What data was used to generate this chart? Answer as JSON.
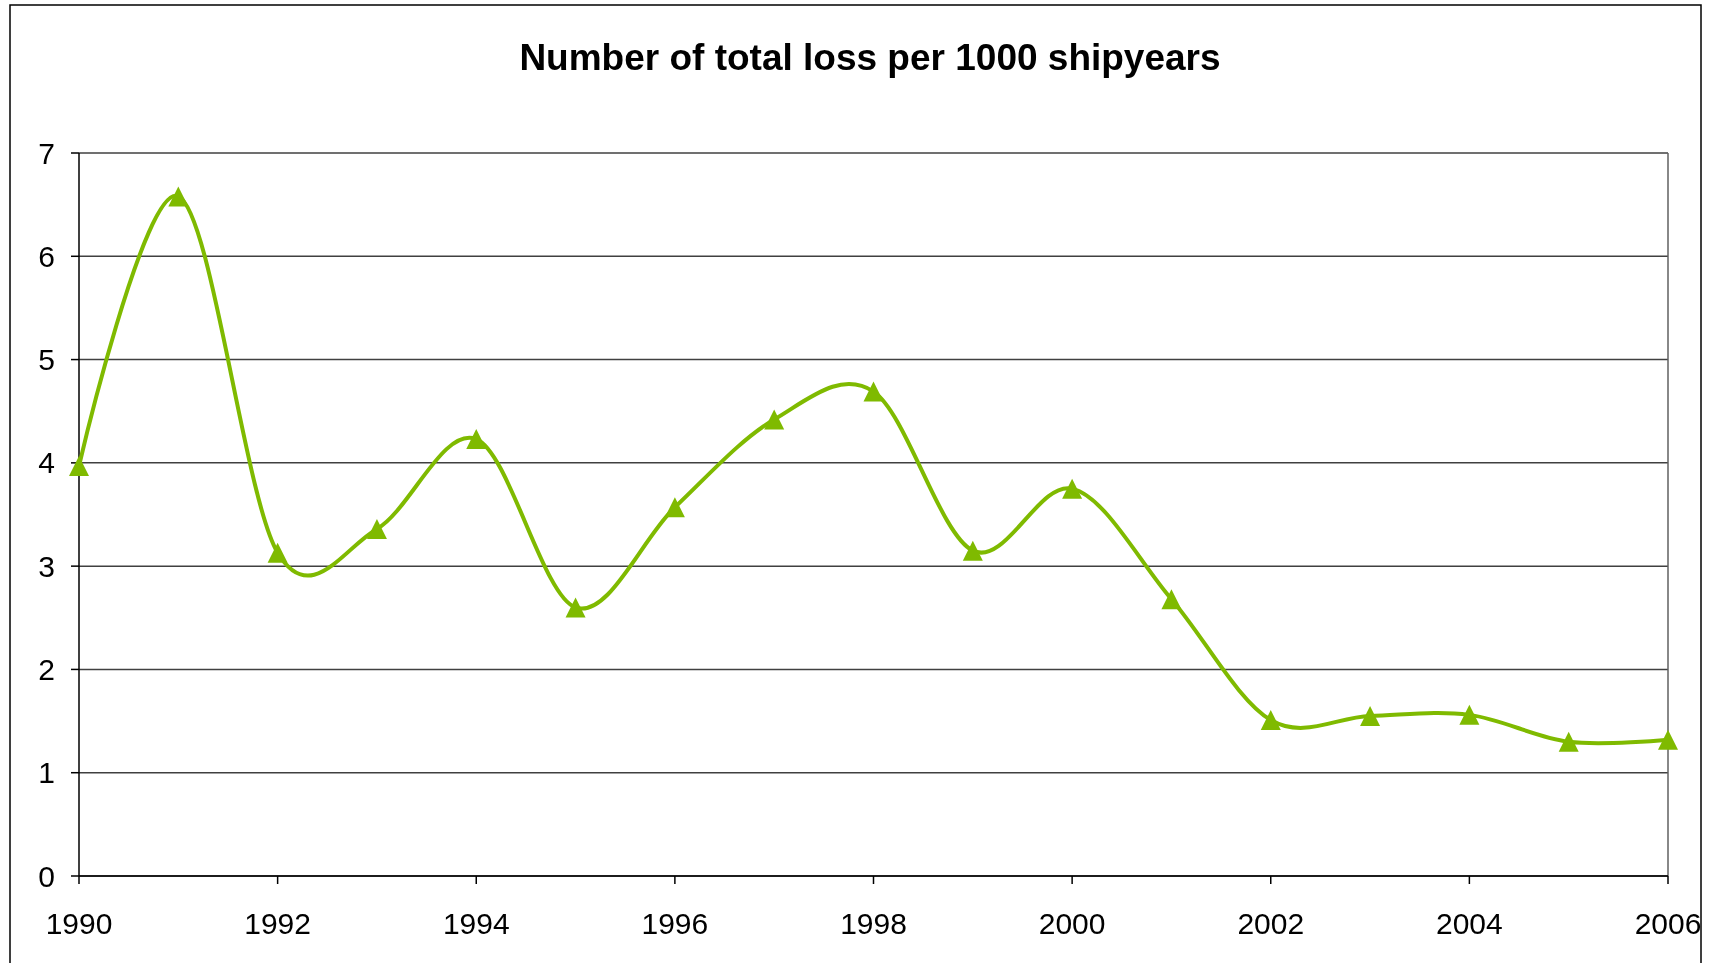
{
  "chart_data": {
    "type": "line",
    "title": "Number of total loss per 1000 shipyears",
    "x": [
      1990,
      1991,
      1992,
      1993,
      1994,
      1995,
      1996,
      1997,
      1998,
      1999,
      2000,
      2001,
      2002,
      2003,
      2004,
      2005,
      2006
    ],
    "series": [
      {
        "color": "#7fba00",
        "values": [
          3.97,
          6.58,
          3.13,
          3.36,
          4.23,
          2.6,
          3.57,
          4.42,
          4.69,
          3.15,
          3.75,
          2.68,
          1.51,
          1.55,
          1.56,
          1.3,
          1.32
        ]
      }
    ],
    "xlim": [
      1990,
      2006
    ],
    "xticks": [
      1990,
      1992,
      1994,
      1996,
      1998,
      2000,
      2002,
      2004,
      2006
    ],
    "ylim": [
      0,
      7
    ],
    "yticks": [
      0,
      1,
      2,
      3,
      4,
      5,
      6,
      7
    ],
    "grid": "y",
    "marker": "triangle",
    "line_style": "solid"
  }
}
